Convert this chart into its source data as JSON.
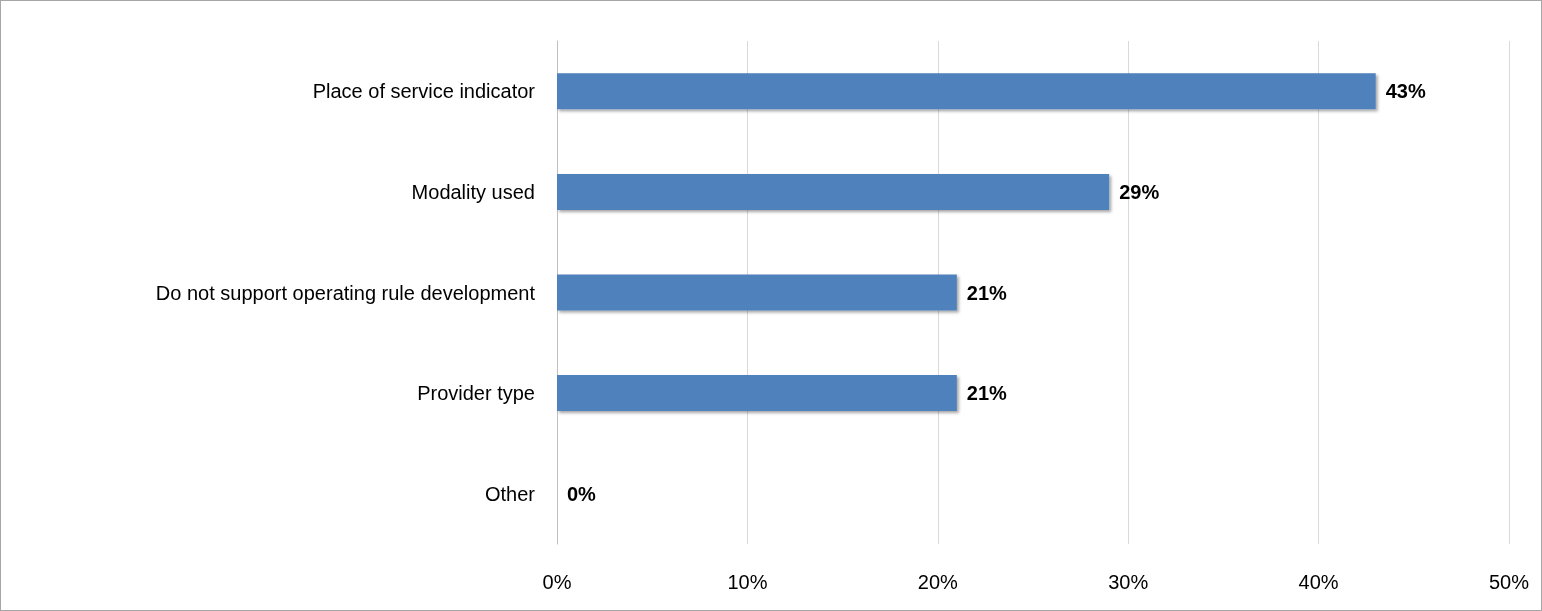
{
  "chart_data": {
    "type": "bar",
    "orientation": "horizontal",
    "categories": [
      "Place of service indicator",
      "Modality used",
      "Do not support operating rule development",
      "Provider type",
      "Other"
    ],
    "values": [
      43,
      29,
      21,
      21,
      0
    ],
    "value_labels": [
      "43%",
      "29%",
      "21%",
      "21%",
      "0%"
    ],
    "color": "#4f81bd",
    "xlim": [
      0,
      50
    ],
    "xticks": [
      {
        "value": 0,
        "label": "0%"
      },
      {
        "value": 10,
        "label": "10%"
      },
      {
        "value": 20,
        "label": "20%"
      },
      {
        "value": 30,
        "label": "30%"
      },
      {
        "value": 40,
        "label": "40%"
      },
      {
        "value": 50,
        "label": "50%"
      }
    ],
    "grid": "x"
  }
}
